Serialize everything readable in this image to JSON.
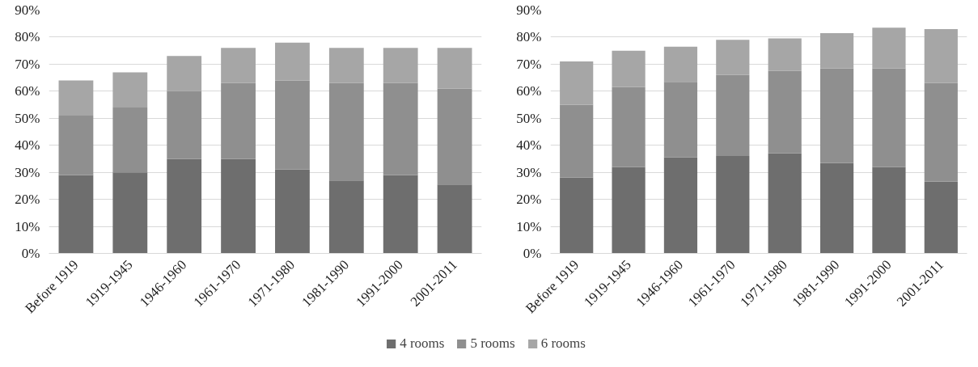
{
  "chart_data": [
    {
      "type": "bar",
      "stacked": true,
      "legend": "bottom",
      "grid": "y",
      "categories": [
        "Before 1919",
        "1919-1945",
        "1946-1960",
        "1961-1970",
        "1971-1980",
        "1981-1990",
        "1991-2000",
        "2001-2011"
      ],
      "ylim": [
        0,
        90
      ],
      "yticks": [
        {
          "value": 0,
          "label": "0%"
        },
        {
          "value": 10,
          "label": "10%"
        },
        {
          "value": 20,
          "label": "20%"
        },
        {
          "value": 30,
          "label": "30%"
        },
        {
          "value": 40,
          "label": "40%"
        },
        {
          "value": 50,
          "label": "50%"
        },
        {
          "value": 60,
          "label": "60%"
        },
        {
          "value": 70,
          "label": "70%"
        },
        {
          "value": 80,
          "label": "80%"
        },
        {
          "value": 90,
          "label": "90%"
        }
      ],
      "series": [
        {
          "name": "4 rooms",
          "color": "#6e6e6e",
          "values": [
            29,
            30,
            35,
            35,
            31,
            27,
            29,
            25.5
          ]
        },
        {
          "name": "5 rooms",
          "color": "#8f8f8f",
          "values": [
            22,
            24,
            25,
            28,
            33,
            36,
            34,
            35.5
          ]
        },
        {
          "name": "6 rooms",
          "color": "#a6a6a6",
          "values": [
            13,
            13,
            13,
            13,
            14,
            13,
            13,
            15
          ]
        }
      ]
    },
    {
      "type": "bar",
      "stacked": true,
      "grid": "y",
      "categories": [
        "Before 1919",
        "1919-1945",
        "1946-1960",
        "1961-1970",
        "1971-1980",
        "1981-1990",
        "1991-2000",
        "2001-2011"
      ],
      "ylim": [
        0,
        90
      ],
      "yticks": [
        {
          "value": 0,
          "label": "0%"
        },
        {
          "value": 10,
          "label": "10%"
        },
        {
          "value": 20,
          "label": "20%"
        },
        {
          "value": 30,
          "label": "30%"
        },
        {
          "value": 40,
          "label": "40%"
        },
        {
          "value": 50,
          "label": "50%"
        },
        {
          "value": 60,
          "label": "60%"
        },
        {
          "value": 70,
          "label": "70%"
        },
        {
          "value": 80,
          "label": "80%"
        },
        {
          "value": 90,
          "label": "90%"
        }
      ],
      "series": [
        {
          "color": "#6e6e6e",
          "values": [
            28,
            32,
            35.5,
            36,
            37,
            33.5,
            32,
            26.5
          ]
        },
        {
          "color": "#8f8f8f",
          "values": [
            27,
            29.5,
            28,
            30,
            30.5,
            35,
            36.5,
            36.5
          ]
        },
        {
          "color": "#a6a6a6",
          "values": [
            16,
            13.5,
            13,
            13,
            12,
            13,
            15,
            20
          ]
        }
      ]
    }
  ]
}
